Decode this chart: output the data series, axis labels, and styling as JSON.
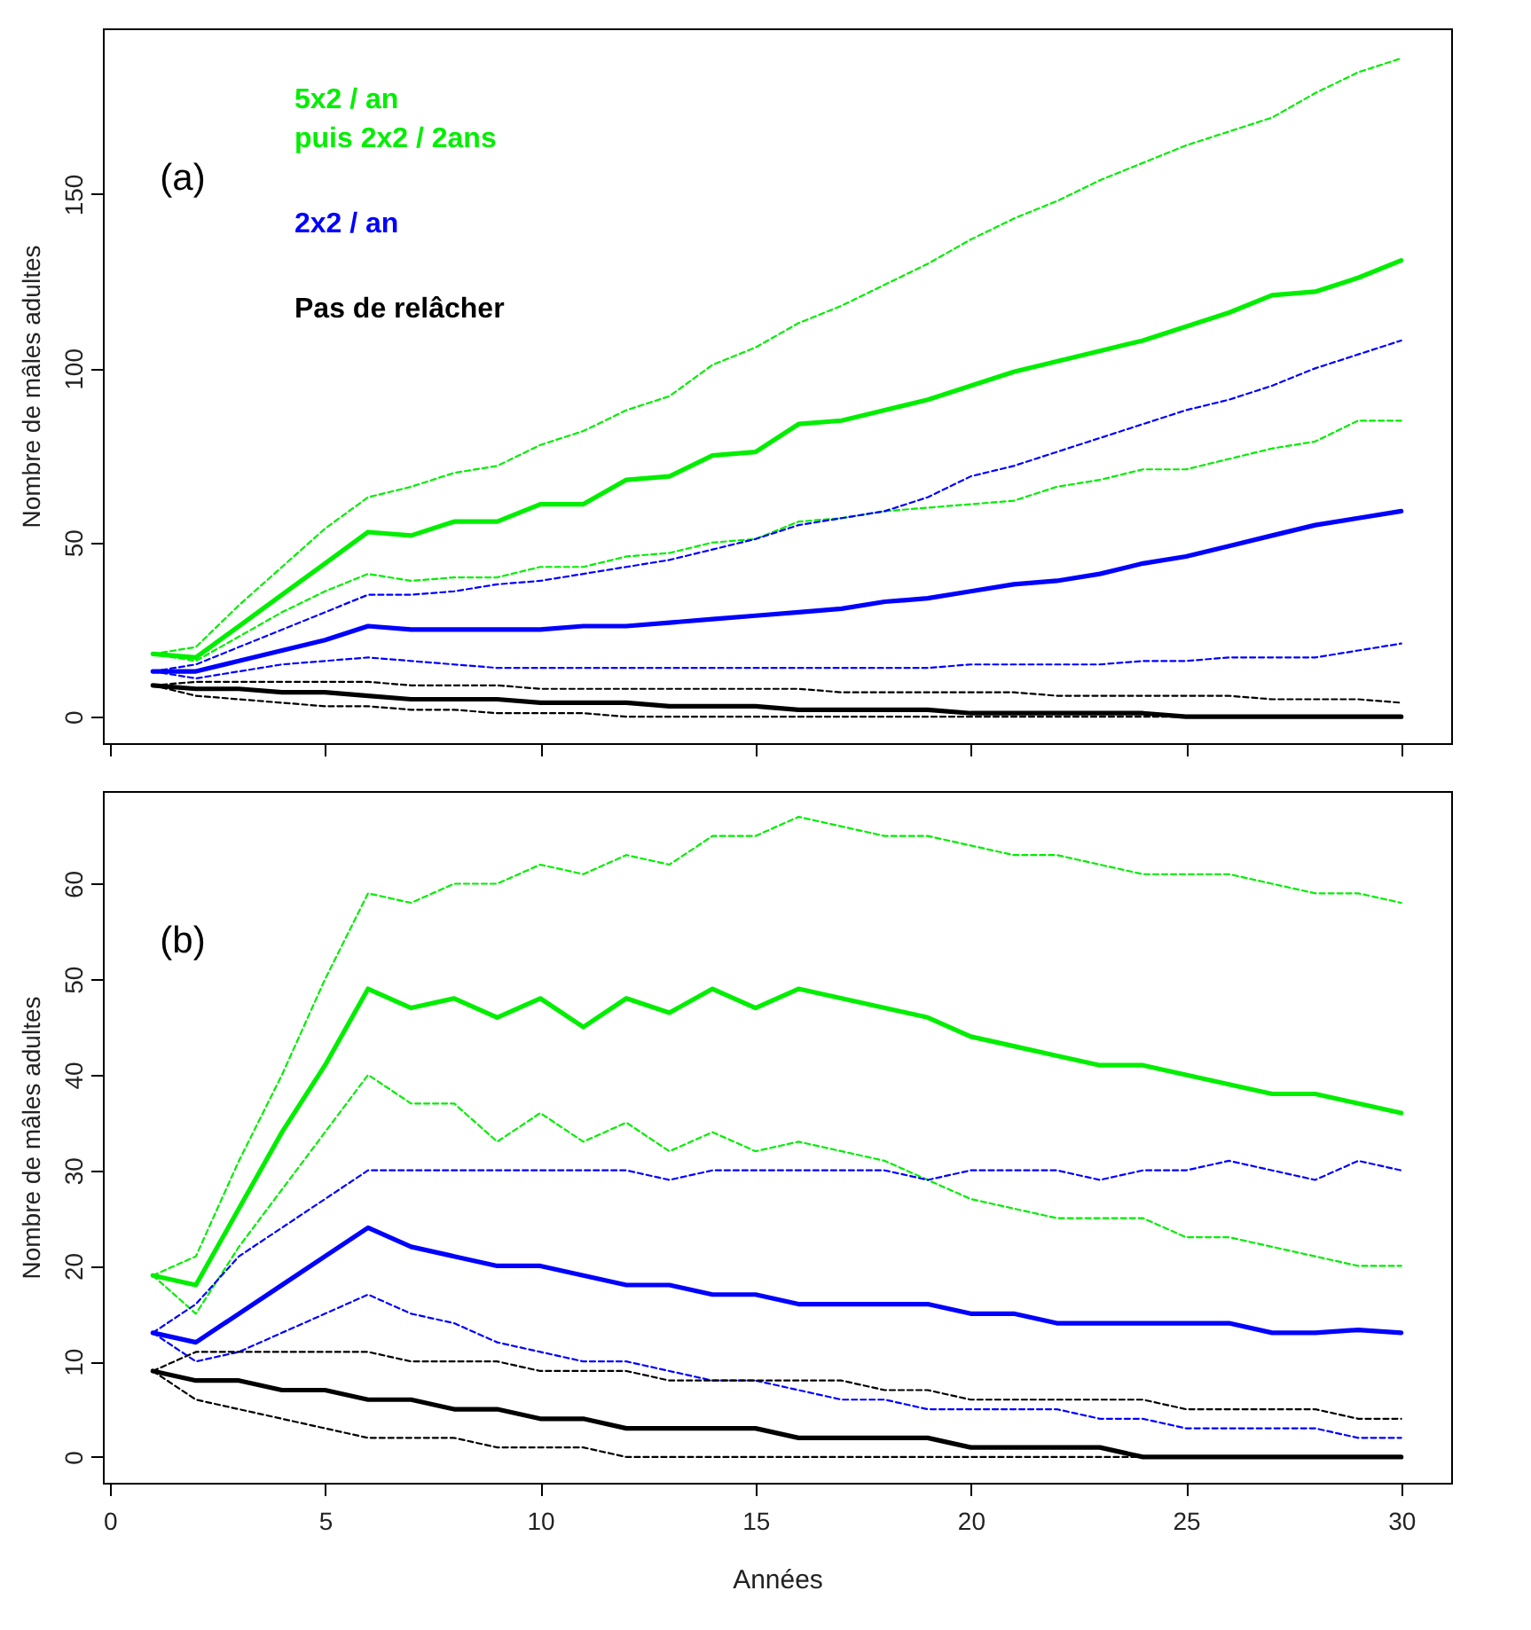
{
  "chart_data": [
    {
      "type": "line",
      "ylabel": "Nombre de mâles adultes",
      "annotations": [
        "(a)"
      ],
      "legend": "top left",
      "tick_labels": "y",
      "grid": false,
      "x": [
        1,
        2,
        3,
        4,
        5,
        6,
        7,
        8,
        9,
        10,
        11,
        12,
        13,
        14,
        15,
        16,
        17,
        18,
        19,
        20,
        21,
        22,
        23,
        24,
        25,
        26,
        27,
        28,
        29,
        30
      ],
      "xlim": [
        -0.16,
        31.16
      ],
      "xticks": [
        0,
        5,
        10,
        15,
        20,
        25,
        30
      ],
      "ylim": [
        -7.6,
        197.6
      ],
      "yticks": [
        0,
        50,
        100,
        150
      ],
      "series": [
        {
          "name": "5x2 / an\npuis 2x2 / 2ans",
          "color": "#00ee00",
          "line_style": "solid",
          "values": [
            18,
            17,
            26,
            35,
            44,
            53,
            52,
            56,
            56,
            61,
            61,
            68,
            69,
            75,
            76,
            84,
            85,
            88,
            91,
            95,
            99,
            102,
            105,
            108,
            112,
            116,
            121,
            122,
            126,
            131
          ]
        },
        {
          "color": "#00ee00",
          "line_style": "dashed",
          "values": [
            18,
            20,
            32,
            43,
            54,
            63,
            66,
            70,
            72,
            78,
            82,
            88,
            92,
            101,
            106,
            113,
            118,
            124,
            130,
            137,
            143,
            148,
            154,
            159,
            164,
            168,
            172,
            179,
            185,
            189
          ]
        },
        {
          "color": "#00ee00",
          "line_style": "dashed",
          "values": [
            18,
            16,
            23,
            30,
            36,
            41,
            39,
            40,
            40,
            43,
            43,
            46,
            47,
            50,
            51,
            56,
            57,
            59,
            60,
            61,
            62,
            66,
            68,
            71,
            71,
            74,
            77,
            79,
            85,
            85
          ]
        },
        {
          "name": "2x2 / an",
          "color": "#0000ff",
          "line_style": "solid",
          "values": [
            13,
            13,
            16,
            19,
            22,
            26,
            25,
            25,
            25,
            25,
            26,
            26,
            27,
            28,
            29,
            30,
            31,
            33,
            34,
            36,
            38,
            39,
            41,
            44,
            46,
            49,
            52,
            55,
            57,
            59
          ]
        },
        {
          "color": "#0000ff",
          "line_style": "dashed",
          "values": [
            13,
            15,
            20,
            25,
            30,
            35,
            35,
            36,
            38,
            39,
            41,
            43,
            45,
            48,
            51,
            55,
            57,
            59,
            63,
            69,
            72,
            76,
            80,
            84,
            88,
            91,
            95,
            100,
            104,
            108
          ]
        },
        {
          "color": "#0000ff",
          "line_style": "dashed",
          "values": [
            13,
            11,
            13,
            15,
            16,
            17,
            16,
            15,
            14,
            14,
            14,
            14,
            14,
            14,
            14,
            14,
            14,
            14,
            14,
            15,
            15,
            15,
            15,
            16,
            16,
            17,
            17,
            17,
            19,
            21
          ]
        },
        {
          "name": "Pas de relâcher",
          "color": "#000000",
          "line_style": "solid",
          "values": [
            9,
            8,
            8,
            7,
            7,
            6,
            5,
            5,
            5,
            4,
            4,
            4,
            3,
            3,
            3,
            2,
            2,
            2,
            2,
            1,
            1,
            1,
            1,
            1,
            0,
            0,
            0,
            0,
            0,
            0
          ]
        },
        {
          "color": "#000000",
          "line_style": "dashed",
          "values": [
            9,
            10,
            10,
            10,
            10,
            10,
            9,
            9,
            9,
            8,
            8,
            8,
            8,
            8,
            8,
            8,
            7,
            7,
            7,
            7,
            7,
            6,
            6,
            6,
            6,
            6,
            5,
            5,
            5,
            4
          ]
        },
        {
          "color": "#000000",
          "line_style": "dashed",
          "values": [
            9,
            6,
            5,
            4,
            3,
            3,
            2,
            2,
            1,
            1,
            1,
            0,
            0,
            0,
            0,
            0,
            0,
            0,
            0,
            0,
            0,
            0,
            0,
            0,
            0,
            0,
            0,
            0,
            0,
            0
          ]
        }
      ]
    },
    {
      "type": "line",
      "ylabel": "Nombre de mâles adultes",
      "xlabel": "Années",
      "annotations": [
        "(b)"
      ],
      "grid": false,
      "x": [
        1,
        2,
        3,
        4,
        5,
        6,
        7,
        8,
        9,
        10,
        11,
        12,
        13,
        14,
        15,
        16,
        17,
        18,
        19,
        20,
        21,
        22,
        23,
        24,
        25,
        26,
        27,
        28,
        29,
        30
      ],
      "xlim": [
        -0.16,
        31.16
      ],
      "xticks": [
        0,
        5,
        10,
        15,
        20,
        25,
        30
      ],
      "ylim": [
        -2.7,
        69.7
      ],
      "yticks": [
        0,
        10,
        20,
        30,
        40,
        50,
        60
      ],
      "series": [
        {
          "color": "#00ee00",
          "line_style": "solid",
          "values": [
            19,
            18,
            26,
            34,
            41,
            49,
            47,
            48,
            46,
            48,
            45,
            48,
            46.5,
            49,
            47,
            49,
            48,
            47,
            46,
            44,
            43,
            42,
            41,
            41,
            40,
            39,
            38,
            38,
            37,
            36
          ]
        },
        {
          "color": "#00ee00",
          "line_style": "dashed",
          "values": [
            19,
            21,
            31,
            40,
            50,
            59,
            58,
            60,
            60,
            62,
            61,
            63,
            62,
            65,
            65,
            67,
            66,
            65,
            65,
            64,
            63,
            63,
            62,
            61,
            61,
            61,
            60,
            59,
            59,
            58
          ]
        },
        {
          "color": "#00ee00",
          "line_style": "dashed",
          "values": [
            19,
            15,
            22,
            28,
            34,
            40,
            37,
            37,
            33,
            36,
            33,
            35,
            32,
            34,
            32,
            33,
            32,
            31,
            29,
            27,
            26,
            25,
            25,
            25,
            23,
            23,
            22,
            21,
            20,
            20
          ]
        },
        {
          "color": "#0000ff",
          "line_style": "solid",
          "values": [
            13,
            12,
            15,
            18,
            21,
            24,
            22,
            21,
            20,
            20,
            19,
            18,
            18,
            17,
            17,
            16,
            16,
            16,
            16,
            15,
            15,
            14,
            14,
            14,
            14,
            14,
            13,
            13,
            13.3,
            13
          ]
        },
        {
          "color": "#0000ff",
          "line_style": "dashed",
          "values": [
            13,
            16,
            21,
            24,
            27,
            30,
            30,
            30,
            30,
            30,
            30,
            30,
            29,
            30,
            30,
            30,
            30,
            30,
            29,
            30,
            30,
            30,
            29,
            30,
            30,
            31,
            30,
            29,
            31,
            30
          ]
        },
        {
          "color": "#0000ff",
          "line_style": "dashed",
          "values": [
            13,
            10,
            11,
            13,
            15,
            17,
            15,
            14,
            12,
            11,
            10,
            10,
            9,
            8,
            8,
            7,
            6,
            6,
            5,
            5,
            5,
            5,
            4,
            4,
            3,
            3,
            3,
            3,
            2,
            2
          ]
        },
        {
          "color": "#000000",
          "line_style": "solid",
          "values": [
            9,
            8,
            8,
            7,
            7,
            6,
            6,
            5,
            5,
            4,
            4,
            3,
            3,
            3,
            3,
            2,
            2,
            2,
            2,
            1,
            1,
            1,
            1,
            0,
            0,
            0,
            0,
            0,
            0,
            0
          ]
        },
        {
          "color": "#000000",
          "line_style": "dashed",
          "values": [
            9,
            11,
            11,
            11,
            11,
            11,
            10,
            10,
            10,
            9,
            9,
            9,
            8,
            8,
            8,
            8,
            8,
            7,
            7,
            6,
            6,
            6,
            6,
            6,
            5,
            5,
            5,
            5,
            4,
            4
          ]
        },
        {
          "color": "#000000",
          "line_style": "dashed",
          "values": [
            9,
            6,
            5,
            4,
            3,
            2,
            2,
            2,
            1,
            1,
            1,
            0,
            0,
            0,
            0,
            0,
            0,
            0,
            0,
            0,
            0,
            0,
            0,
            0,
            0,
            0,
            0,
            0,
            0,
            0
          ]
        }
      ]
    }
  ]
}
